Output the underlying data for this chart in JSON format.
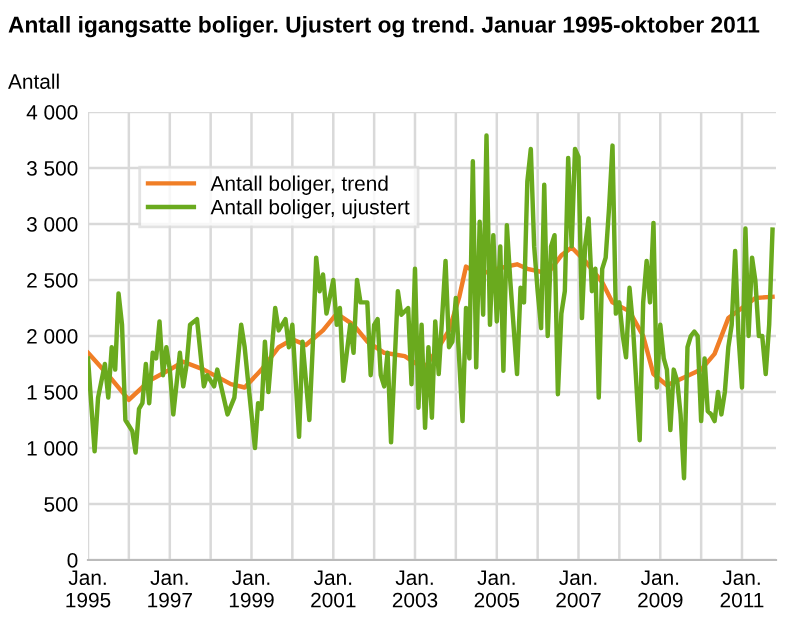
{
  "chart_data": {
    "type": "line",
    "title": "Antall igangsatte boliger. Ujustert og trend. Januar 1995-oktober 2011",
    "ylabel": "Antall",
    "series": [
      {
        "name": "Antall boliger, trend",
        "color": "#f07e26",
        "x": [
          "1995-01",
          "1995-07",
          "1996-01",
          "1996-07",
          "1997-01",
          "1997-05",
          "1997-11",
          "1998-07",
          "1998-11",
          "1999-04",
          "1999-09",
          "2000-01",
          "2000-05",
          "2000-10",
          "2001-02",
          "2001-07",
          "2001-11",
          "2002-04",
          "2002-10",
          "2003-01",
          "2003-04",
          "2003-08",
          "2003-11",
          "2004-02",
          "2004-04",
          "2004-08",
          "2005-01",
          "2005-07",
          "2005-10",
          "2006-04",
          "2006-08",
          "2006-11",
          "2007-03",
          "2007-08",
          "2007-11",
          "2008-04",
          "2008-08",
          "2008-11",
          "2009-03",
          "2009-08",
          "2010-01",
          "2010-05",
          "2010-09",
          "2011-01",
          "2011-05",
          "2011-10"
        ],
        "values": [
          1850,
          1650,
          1430,
          1600,
          1700,
          1770,
          1700,
          1570,
          1540,
          1700,
          1900,
          1970,
          1920,
          2050,
          2200,
          2100,
          1950,
          1850,
          1820,
          1760,
          1720,
          1900,
          2050,
          2350,
          2620,
          2550,
          2600,
          2640,
          2600,
          2560,
          2720,
          2790,
          2670,
          2480,
          2300,
          2220,
          2000,
          1660,
          1560,
          1630,
          1700,
          1840,
          2160,
          2250,
          2340,
          2350
        ]
      },
      {
        "name": "Antall boliger, ujustert",
        "color": "#6aaa1e",
        "x": [
          "1995-01",
          "1995-03",
          "1995-04",
          "1995-06",
          "1995-07",
          "1995-08",
          "1995-09",
          "1995-10",
          "1995-11",
          "1995-12",
          "1996-02",
          "1996-03",
          "1996-04",
          "1996-05",
          "1996-06",
          "1996-07",
          "1996-08",
          "1996-09",
          "1996-10",
          "1996-11",
          "1996-12",
          "1997-01",
          "1997-02",
          "1997-04",
          "1997-05",
          "1997-06",
          "1997-07",
          "1997-09",
          "1997-11",
          "1997-12",
          "1998-02",
          "1998-03",
          "1998-06",
          "1998-08",
          "1998-10",
          "1998-11",
          "1998-12",
          "1999-02",
          "1999-03",
          "1999-04",
          "1999-05",
          "1999-06",
          "1999-08",
          "1999-09",
          "1999-11",
          "1999-12",
          "2000-01",
          "2000-03",
          "2000-04",
          "2000-06",
          "2000-07",
          "2000-08",
          "2000-09",
          "2000-10",
          "2000-11",
          "2001-01",
          "2001-02",
          "2001-03",
          "2001-04",
          "2001-06",
          "2001-07",
          "2001-08",
          "2001-09",
          "2001-11",
          "2001-12",
          "2002-01",
          "2002-02",
          "2002-03",
          "2002-04",
          "2002-05",
          "2002-06",
          "2002-08",
          "2002-09",
          "2002-11",
          "2002-12",
          "2003-01",
          "2003-02",
          "2003-03",
          "2003-04",
          "2003-05",
          "2003-06",
          "2003-07",
          "2003-08",
          "2003-10",
          "2003-11",
          "2003-12",
          "2004-01",
          "2004-03",
          "2004-04",
          "2004-05",
          "2004-06",
          "2004-07",
          "2004-08",
          "2004-09",
          "2004-10",
          "2004-11",
          "2004-12",
          "2005-01",
          "2005-02",
          "2005-03",
          "2005-04",
          "2005-05",
          "2005-07",
          "2005-08",
          "2005-09",
          "2005-10",
          "2005-11",
          "2005-12",
          "2006-01",
          "2006-02",
          "2006-03",
          "2006-04",
          "2006-05",
          "2006-06",
          "2006-07",
          "2006-08",
          "2006-09",
          "2006-10",
          "2006-11",
          "2006-12",
          "2007-01",
          "2007-02",
          "2007-03",
          "2007-04",
          "2007-05",
          "2007-06",
          "2007-07",
          "2007-08",
          "2007-09",
          "2007-10",
          "2007-11",
          "2007-12",
          "2008-01",
          "2008-02",
          "2008-03",
          "2008-04",
          "2008-05",
          "2008-07",
          "2008-08",
          "2008-09",
          "2008-10",
          "2008-11",
          "2008-12",
          "2009-01",
          "2009-02",
          "2009-03",
          "2009-04",
          "2009-05",
          "2009-06",
          "2009-07",
          "2009-08",
          "2009-09",
          "2009-10",
          "2009-11",
          "2009-12",
          "2010-01",
          "2010-02",
          "2010-03",
          "2010-04",
          "2010-05",
          "2010-06",
          "2010-07",
          "2010-08",
          "2010-09",
          "2010-10",
          "2010-11",
          "2010-12",
          "2011-01",
          "2011-02",
          "2011-03",
          "2011-04",
          "2011-05",
          "2011-06",
          "2011-07",
          "2011-08",
          "2011-09",
          "2011-10"
        ],
        "values": [
          1800,
          970,
          1450,
          1750,
          1450,
          1900,
          1700,
          2380,
          2100,
          1250,
          1150,
          960,
          1350,
          1400,
          1750,
          1400,
          1850,
          1800,
          2130,
          1650,
          1900,
          1700,
          1300,
          1850,
          1550,
          1750,
          2100,
          2150,
          1550,
          1650,
          1550,
          1700,
          1300,
          1450,
          2100,
          1900,
          1600,
          1000,
          1400,
          1350,
          1950,
          1500,
          2250,
          2050,
          2150,
          1900,
          2100,
          1100,
          1950,
          1250,
          1900,
          2700,
          2400,
          2550,
          2200,
          2500,
          2100,
          2250,
          1600,
          2100,
          1850,
          2500,
          2300,
          2300,
          1650,
          2100,
          2150,
          1650,
          1550,
          1850,
          1050,
          2400,
          2190,
          2250,
          1570,
          2600,
          1360,
          2100,
          1180,
          1900,
          1270,
          2130,
          1660,
          2670,
          1900,
          1950,
          2340,
          1240,
          2250,
          1800,
          3560,
          1720,
          3020,
          2190,
          3790,
          2100,
          2900,
          2130,
          2800,
          1690,
          2990,
          2500,
          1660,
          2430,
          2300,
          3380,
          3670,
          2800,
          2400,
          2070,
          3350,
          2000,
          2800,
          2900,
          1480,
          2200,
          2400,
          3590,
          2800,
          3670,
          3600,
          2160,
          2800,
          3050,
          2400,
          2600,
          1450,
          2600,
          2700,
          3140,
          3700,
          2200,
          2300,
          2000,
          1810,
          2430,
          2100,
          1070,
          2300,
          2670,
          2300,
          3010,
          1540,
          2100,
          1800,
          1700,
          1160,
          1700,
          1600,
          1300,
          730,
          1900,
          2000,
          2040,
          2000,
          1240,
          1800,
          1330,
          1300,
          1240,
          1500,
          1300,
          1500,
          1900,
          2100,
          2760,
          2000,
          1540,
          2960,
          2000,
          2700,
          2490,
          2000,
          2000,
          1660,
          2100,
          2950
        ]
      }
    ],
    "xlim": [
      "1995-01",
      "2011-11"
    ],
    "ylim": [
      0,
      4000
    ],
    "xticks": [
      {
        "value": "1995-01",
        "label": "Jan.\n1995"
      },
      {
        "value": "1996-01",
        "label": null
      },
      {
        "value": "1997-01",
        "label": "Jan.\n1997"
      },
      {
        "value": "1998-01",
        "label": null
      },
      {
        "value": "1999-01",
        "label": "Jan.\n1999"
      },
      {
        "value": "2000-01",
        "label": null
      },
      {
        "value": "2001-01",
        "label": "Jan.\n2001"
      },
      {
        "value": "2002-01",
        "label": null
      },
      {
        "value": "2003-01",
        "label": "Jan.\n2003"
      },
      {
        "value": "2004-01",
        "label": null
      },
      {
        "value": "2005-01",
        "label": "Jan.\n2005"
      },
      {
        "value": "2006-01",
        "label": null
      },
      {
        "value": "2007-01",
        "label": "Jan.\n2007"
      },
      {
        "value": "2008-01",
        "label": null
      },
      {
        "value": "2009-01",
        "label": "Jan.\n2009"
      },
      {
        "value": "2010-01",
        "label": null
      },
      {
        "value": "2011-01",
        "label": "Jan.\n2011"
      }
    ],
    "yticks": [
      0,
      {
        "value": 500,
        "label": "500"
      },
      {
        "value": 1000,
        "label": "1 000"
      },
      {
        "value": 1500,
        "label": "1 500"
      },
      {
        "value": 2000,
        "label": "2 000"
      },
      {
        "value": 2500,
        "label": "2 500"
      },
      {
        "value": 3000,
        "label": "3 000"
      },
      {
        "value": 3500,
        "label": "3 500"
      },
      {
        "value": 4000,
        "label": "4 000"
      }
    ],
    "grid": true,
    "legend": "top left",
    "marker": "none",
    "line_style": "solid"
  }
}
